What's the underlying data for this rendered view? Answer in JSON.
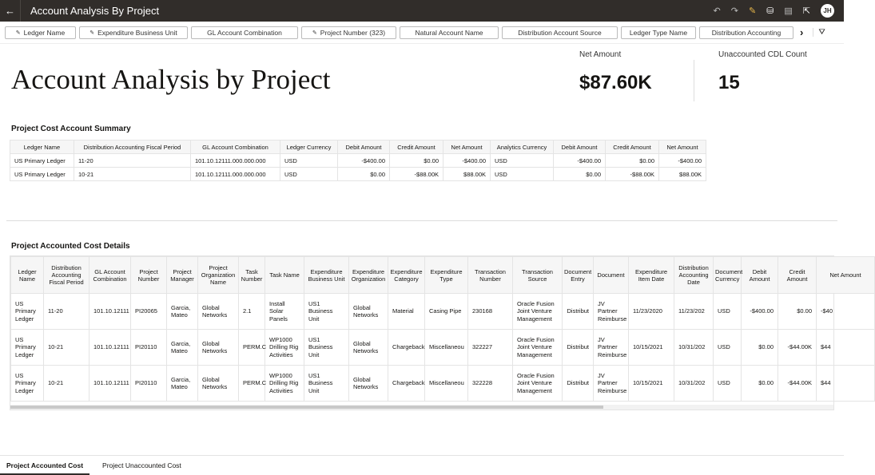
{
  "header": {
    "title": "Account Analysis By Project",
    "avatar": "JH",
    "icons": [
      "back-arrow-icon",
      "undo-icon",
      "redo-icon",
      "edit-icon",
      "bookmark-icon",
      "comment-icon",
      "export-icon"
    ]
  },
  "filters": [
    {
      "label": "Ledger Name",
      "pinned": true
    },
    {
      "label": "Expenditure Business Unit",
      "pinned": true
    },
    {
      "label": "GL Account Combination",
      "pinned": false
    },
    {
      "label": "Project Number (323)",
      "pinned": true
    },
    {
      "label": "Natural Account Name",
      "pinned": false
    },
    {
      "label": "Distribution Account Source",
      "pinned": false
    },
    {
      "label": "Ledger Type Name",
      "pinned": false
    },
    {
      "label": "Distribution Accounting",
      "pinned": false
    }
  ],
  "page_title": "Account Analysis by Project",
  "kpis": [
    {
      "label": "Net Amount",
      "value": "$87.60K"
    },
    {
      "label": "Unaccounted CDL Count",
      "value": "15"
    }
  ],
  "summary": {
    "title": "Project Cost Account Summary",
    "columns": [
      "Ledger Name",
      "Distribution Accounting Fiscal Period",
      "GL Account Combination",
      "Ledger Currency",
      "Debit Amount",
      "Credit Amount",
      "Net Amount",
      "Analytics Currency",
      "Debit Amount",
      "Credit Amount",
      "Net Amount"
    ],
    "rows": [
      [
        "US Primary Ledger",
        "11-20",
        "101.10.12111.000.000.000",
        "USD",
        "-$400.00",
        "$0.00",
        "-$400.00",
        "USD",
        "-$400.00",
        "$0.00",
        "-$400.00"
      ],
      [
        "US Primary Ledger",
        "10-21",
        "101.10.12111.000.000.000",
        "USD",
        "$0.00",
        "-$88.00K",
        "$88.00K",
        "USD",
        "$0.00",
        "-$88.00K",
        "$88.00K"
      ]
    ]
  },
  "details": {
    "title": "Project Accounted Cost Details",
    "columns": [
      "Ledger Name",
      "Distribution Accounting Fiscal Period",
      "GL Account Combination",
      "Project Number",
      "Project Manager",
      "Project Organization Name",
      "Task Number",
      "Task Name",
      "Expenditure Business Unit",
      "Expenditure Organization",
      "Expenditure Category",
      "Expenditure Type",
      "Transaction Number",
      "Transaction Source",
      "Document Entry",
      "Document",
      "Expenditure Item Date",
      "Distribution Accounting Date",
      "Document Currency",
      "Debit Amount",
      "Credit Amount",
      "Net Amount"
    ],
    "rows": [
      [
        "US Primary Ledger",
        "11-20",
        "101.10.12111",
        "PI20065",
        "Garcia, Mateo",
        "Global Networks",
        "2.1",
        "Install Solar Panels",
        "US1 Business Unit",
        "Global Networks",
        "Material",
        "Casing Pipe",
        "230168",
        "Oracle Fusion Joint Venture Management",
        "Distribut",
        "JV Partner Reimburse",
        "11/23/2020",
        "11/23/202",
        "USD",
        "-$400.00",
        "$0.00",
        "-$40"
      ],
      [
        "US Primary Ledger",
        "10-21",
        "101.10.12111",
        "PI20110",
        "Garcia, Mateo",
        "Global Networks",
        "PERM.C",
        "WP1000 Drilling Rig Activities",
        "US1 Business Unit",
        "Global Networks",
        "Chargeback",
        "Miscellaneou",
        "322227",
        "Oracle Fusion Joint Venture Management",
        "Distribut",
        "JV Partner Reimburse",
        "10/15/2021",
        "10/31/202",
        "USD",
        "$0.00",
        "-$44.00K",
        "$44"
      ],
      [
        "US Primary Ledger",
        "10-21",
        "101.10.12111",
        "PI20110",
        "Garcia, Mateo",
        "Global Networks",
        "PERM.C",
        "WP1000 Drilling Rig Activities",
        "US1 Business Unit",
        "Global Networks",
        "Chargeback",
        "Miscellaneou",
        "322228",
        "Oracle Fusion Joint Venture Management",
        "Distribut",
        "JV Partner Reimburse",
        "10/15/2021",
        "10/31/202",
        "USD",
        "$0.00",
        "-$44.00K",
        "$44"
      ]
    ]
  },
  "tabs": [
    {
      "label": "Project Accounted Cost",
      "active": true
    },
    {
      "label": "Project Unaccounted Cost",
      "active": false
    }
  ]
}
